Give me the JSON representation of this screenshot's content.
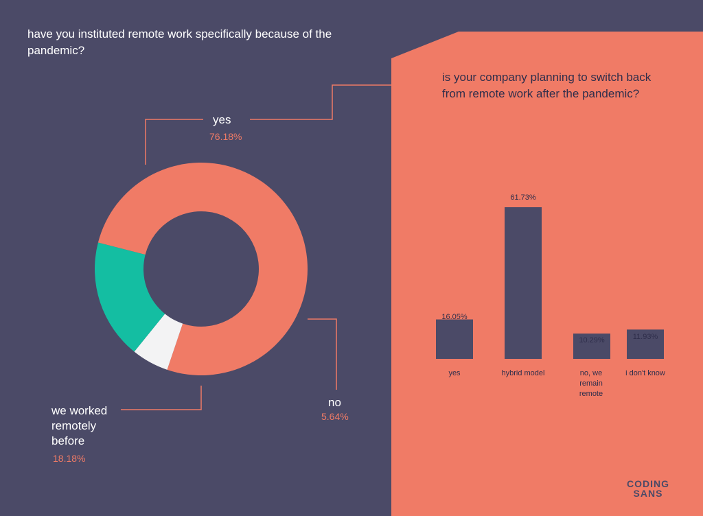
{
  "brand": {
    "line1": "CODING",
    "line2": "SANS"
  },
  "colors": {
    "background": "#4b4a67",
    "panel": "#f07b66",
    "accent_teal": "#14bea2",
    "light": "#f3f3f4",
    "dark_bar": "#4b4a67"
  },
  "chart_data": [
    {
      "type": "pie",
      "title": "have you instituted remote work specifically because of the pandemic?",
      "slices": [
        {
          "label": "yes",
          "value": 76.18,
          "display": "76.18%",
          "color": "#f07b66"
        },
        {
          "label": "no",
          "value": 5.64,
          "display": "5.64%",
          "color": "#f3f3f4"
        },
        {
          "label": "we worked remotely before",
          "value": 18.18,
          "display": "18.18%",
          "color": "#14bea2"
        }
      ]
    },
    {
      "type": "bar",
      "title": "is your company planning to switch back from remote work after the pandemic?",
      "categories": [
        "yes",
        "hybrid model",
        "no, we remain remote",
        "i don't know"
      ],
      "values": [
        16.05,
        61.73,
        10.29,
        11.93
      ],
      "value_labels": [
        "16.05%",
        "61.73%",
        "10.29%",
        "11.93%"
      ],
      "color": "#4b4a67"
    }
  ]
}
